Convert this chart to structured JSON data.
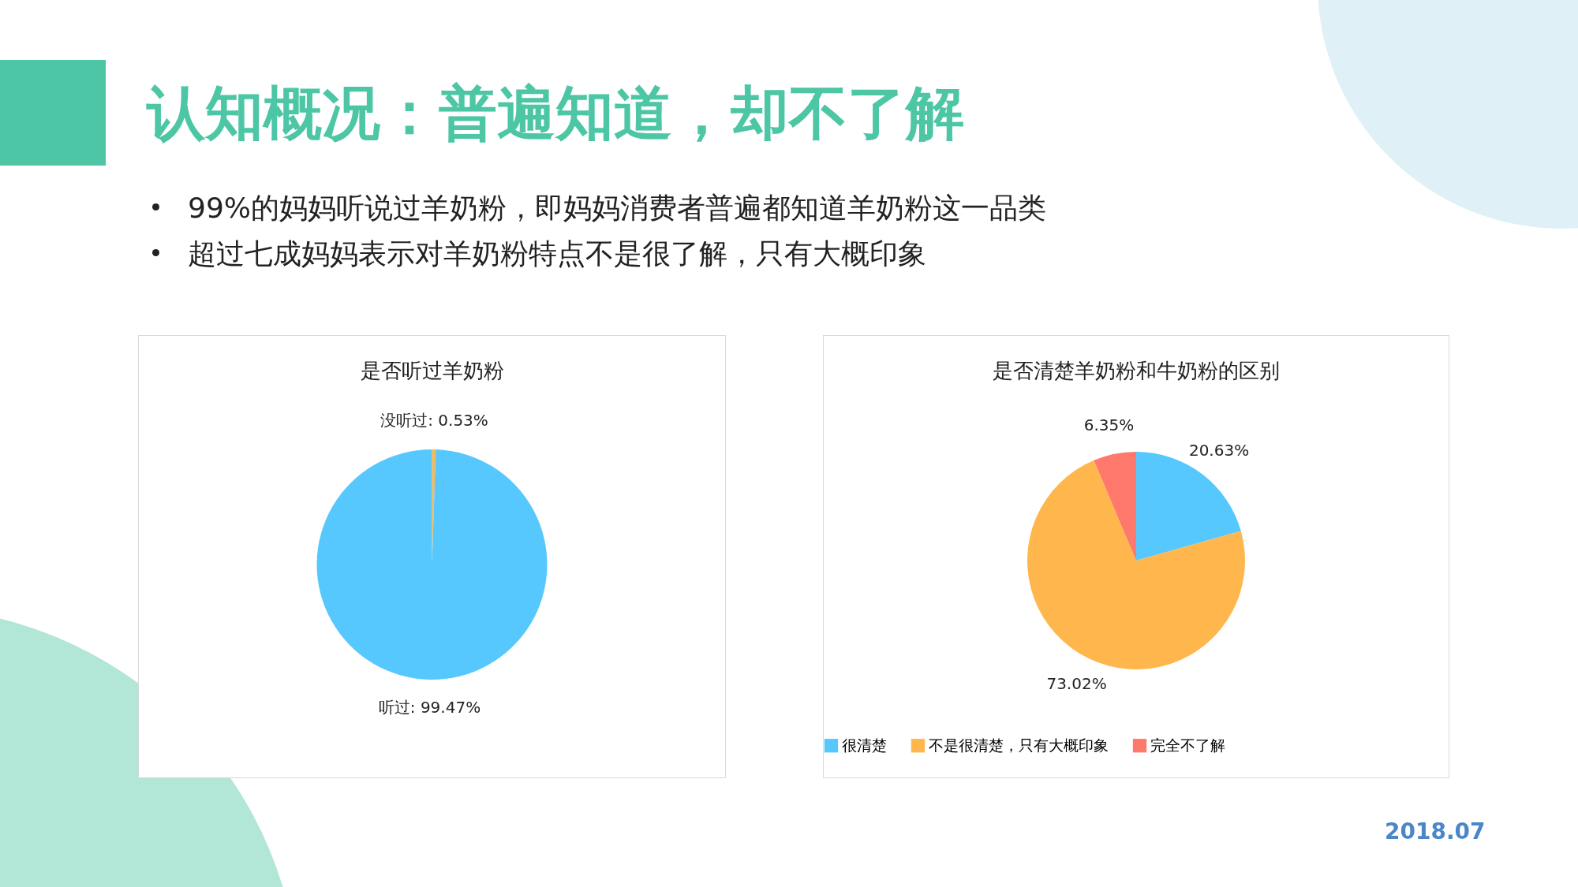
{
  "chart_data": [
    {
      "type": "pie",
      "title": "是否听过羊奶粉",
      "categories": [
        "没听过",
        "听过"
      ],
      "values": [
        0.53,
        99.47
      ],
      "colors": [
        "#ffb74d",
        "#56c8fd"
      ],
      "value_labels": [
        "0.53%",
        "99.47%"
      ],
      "annotations": [
        "认知概况：普遍知道，却不了解",
        "99%的妈妈听说过羊奶粉，即妈妈消费者普遍都知道羊奶粉这一品类",
        "超过七成妈妈表示对羊奶粉特点不是很了解，只有大概印象"
      ]
    },
    {
      "type": "pie",
      "title": "是否清楚羊奶粉和牛奶粉的区别",
      "categories": [
        "很清楚",
        "不是很清楚，只有大概印象",
        "完全不了解"
      ],
      "values": [
        20.63,
        73.02,
        6.35
      ],
      "colors": [
        "#56c8fd",
        "#ffb74d",
        "#fe786b"
      ],
      "value_labels": [
        "20.63%",
        "73.02%",
        "6.35%"
      ],
      "legend": "bottom",
      "annotations": [
        "2018.07"
      ]
    }
  ]
}
